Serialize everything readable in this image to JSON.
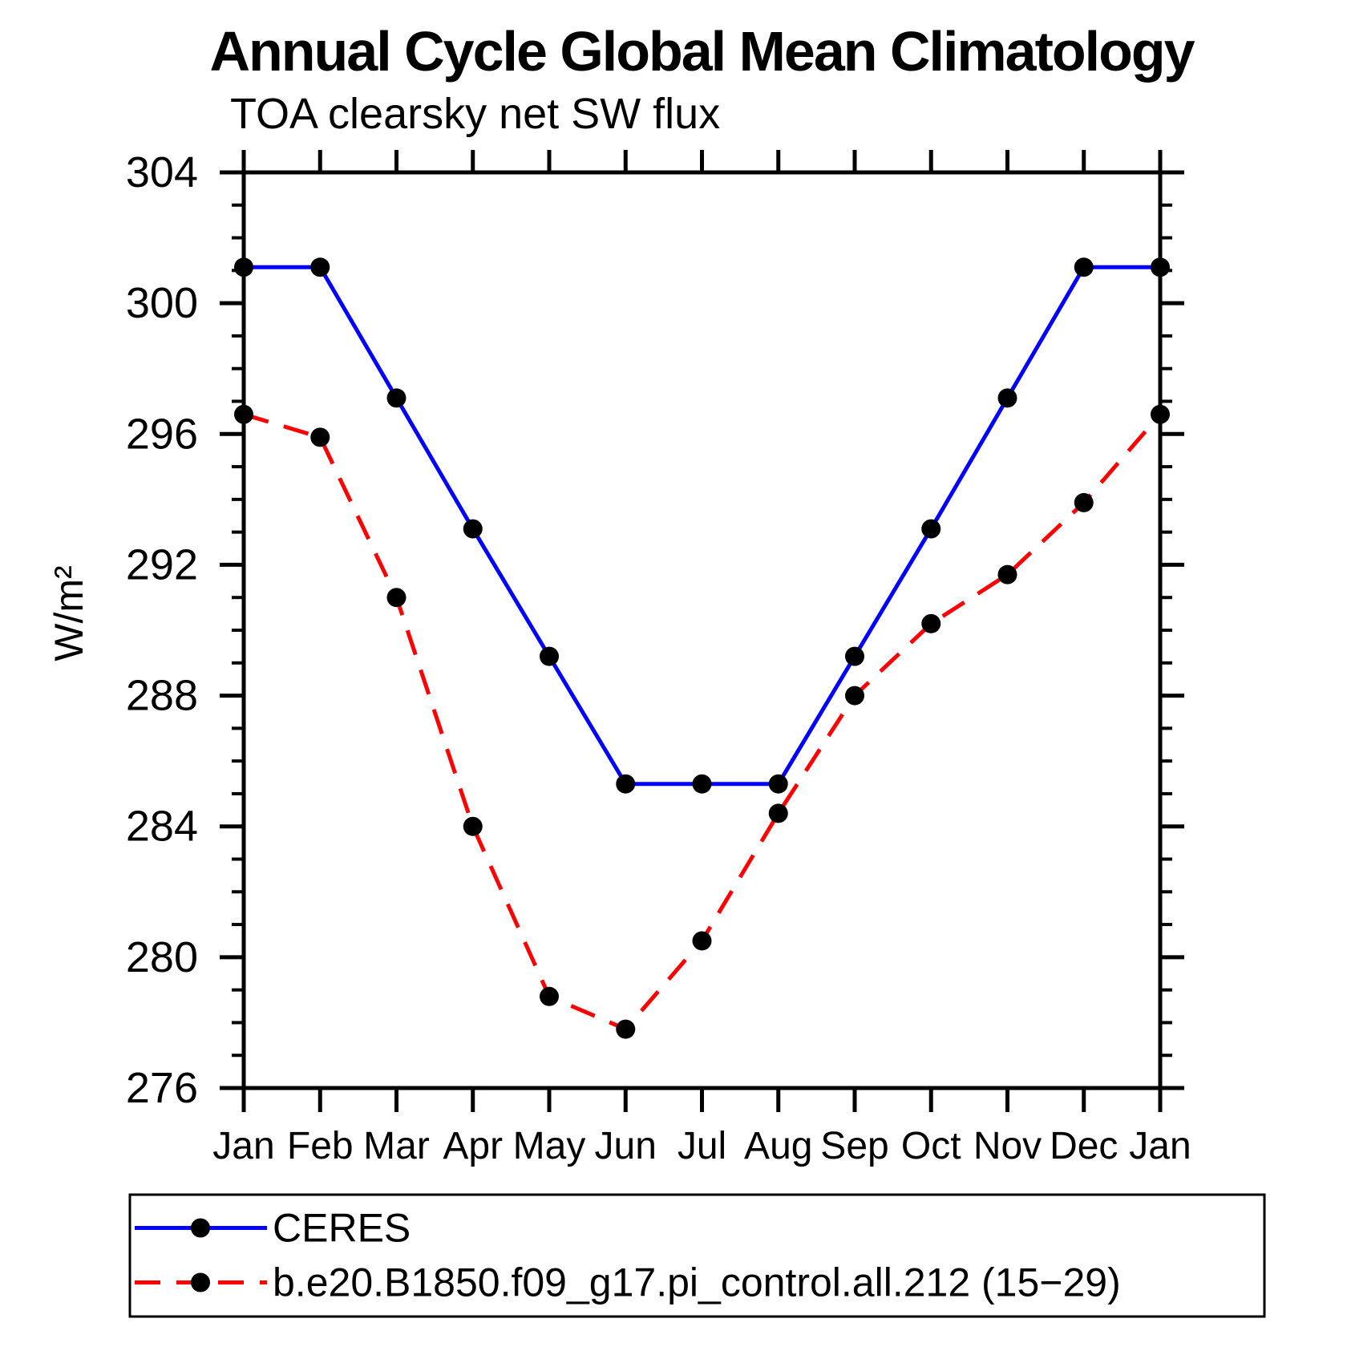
{
  "page": {
    "background_color": "#ffffff"
  },
  "chart_data": {
    "type": "line",
    "title": "Annual Cycle Global Mean Climatology",
    "subtitle": "TOA clearsky net SW flux",
    "xlabel": "",
    "ylabel": "W/m²",
    "categories": [
      "Jan",
      "Feb",
      "Mar",
      "Apr",
      "May",
      "Jun",
      "Jul",
      "Aug",
      "Sep",
      "Oct",
      "Nov",
      "Dec",
      "Jan"
    ],
    "ylim": [
      276,
      304
    ],
    "yticks_major": [
      276,
      280,
      284,
      288,
      292,
      296,
      300,
      304
    ],
    "ytick_major_interval": 4,
    "ytick_minor_interval": 1,
    "grid": false,
    "legend_position": "bottom",
    "frame_color": "#000000",
    "series": [
      {
        "name": "CERES",
        "color": "#0000ff",
        "style": "solid",
        "marker": "circle",
        "marker_color": "#000000",
        "values": [
          301.1,
          301.1,
          297.1,
          293.1,
          289.2,
          285.3,
          285.3,
          285.3,
          289.2,
          293.1,
          297.1,
          301.1,
          301.1
        ]
      },
      {
        "name": "b.e20.B1850.f09_g17.pi_control.all.212 (15−29)",
        "color": "#ff0000",
        "style": "dashed",
        "marker": "circle",
        "marker_color": "#000000",
        "values": [
          296.6,
          295.9,
          291.0,
          284.0,
          278.8,
          277.8,
          280.5,
          284.4,
          288.0,
          290.2,
          291.7,
          293.9,
          296.6
        ]
      }
    ]
  }
}
